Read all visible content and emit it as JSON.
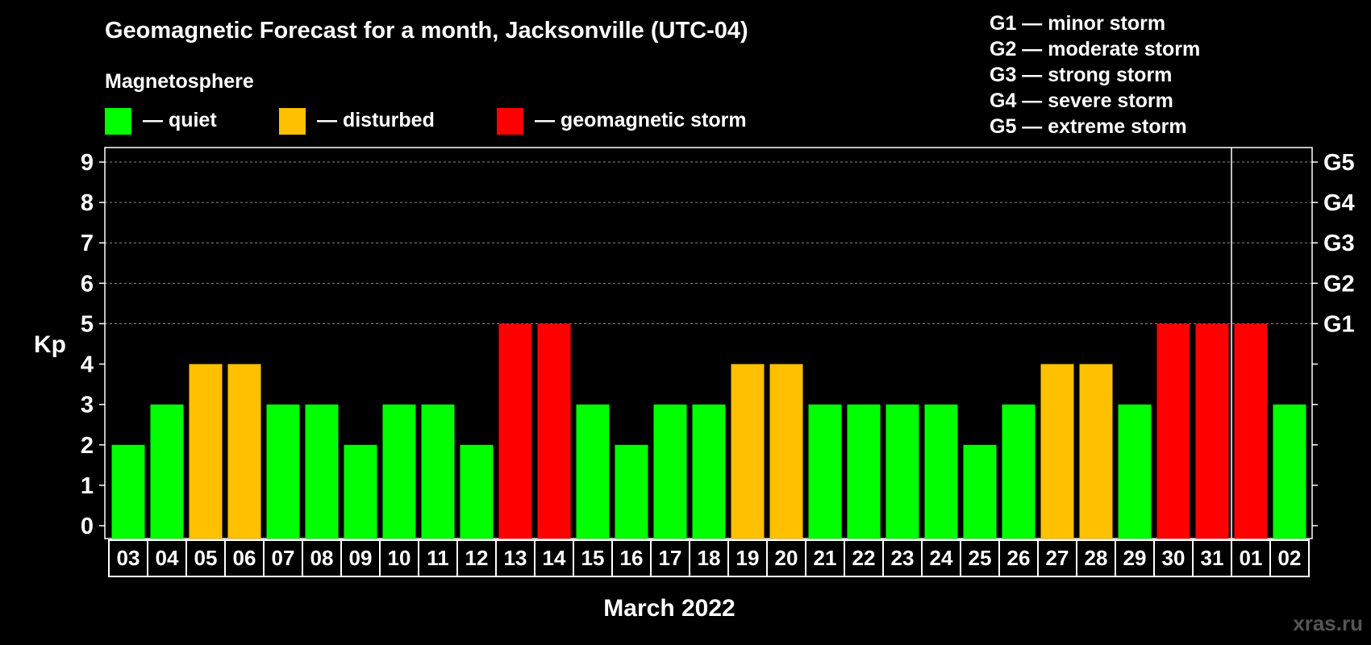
{
  "title": "Geomagnetic Forecast for a month, Jacksonville (UTC-04)",
  "legend": {
    "heading": "Magnetosphere",
    "items": [
      {
        "label": "— quiet",
        "color": "#00ff00"
      },
      {
        "label": "— disturbed",
        "color": "#ffc000"
      },
      {
        "label": "— geomagnetic storm",
        "color": "#ff0000"
      }
    ]
  },
  "storm_scale": [
    "G1 — minor storm",
    "G2 — moderate storm",
    "G3 — strong storm",
    "G4 — severe storm",
    "G5 — extreme storm"
  ],
  "watermark": "xras.ru",
  "chart_data": {
    "type": "bar",
    "ylabel": "Kp",
    "xlabel": "March 2022",
    "ylim": [
      0,
      9
    ],
    "yticks": [
      "0",
      "1",
      "2",
      "3",
      "4",
      "5",
      "6",
      "7",
      "8",
      "9"
    ],
    "right_axis_labels": [
      {
        "value": 5,
        "label": "G1"
      },
      {
        "value": 6,
        "label": "G2"
      },
      {
        "value": 7,
        "label": "G3"
      },
      {
        "value": 8,
        "label": "G4"
      },
      {
        "value": 9,
        "label": "G5"
      }
    ],
    "grid": "dashed at 5-9",
    "month_separator_after": "31",
    "categories": [
      "03",
      "04",
      "05",
      "06",
      "07",
      "08",
      "09",
      "10",
      "11",
      "12",
      "13",
      "14",
      "15",
      "16",
      "17",
      "18",
      "19",
      "20",
      "21",
      "22",
      "23",
      "24",
      "25",
      "26",
      "27",
      "28",
      "29",
      "30",
      "31",
      "01",
      "02"
    ],
    "values": [
      2,
      3,
      4,
      4,
      3,
      3,
      2,
      3,
      3,
      2,
      5,
      5,
      3,
      2,
      3,
      3,
      4,
      4,
      3,
      3,
      3,
      3,
      2,
      3,
      4,
      4,
      3,
      5,
      5,
      5,
      3
    ],
    "status": [
      "quiet",
      "quiet",
      "disturbed",
      "disturbed",
      "quiet",
      "quiet",
      "quiet",
      "quiet",
      "quiet",
      "quiet",
      "storm",
      "storm",
      "quiet",
      "quiet",
      "quiet",
      "quiet",
      "disturbed",
      "disturbed",
      "quiet",
      "quiet",
      "quiet",
      "quiet",
      "quiet",
      "quiet",
      "disturbed",
      "disturbed",
      "quiet",
      "storm",
      "storm",
      "storm",
      "quiet"
    ],
    "colors": {
      "quiet": "#00ff00",
      "disturbed": "#ffc000",
      "storm": "#ff0000"
    }
  }
}
